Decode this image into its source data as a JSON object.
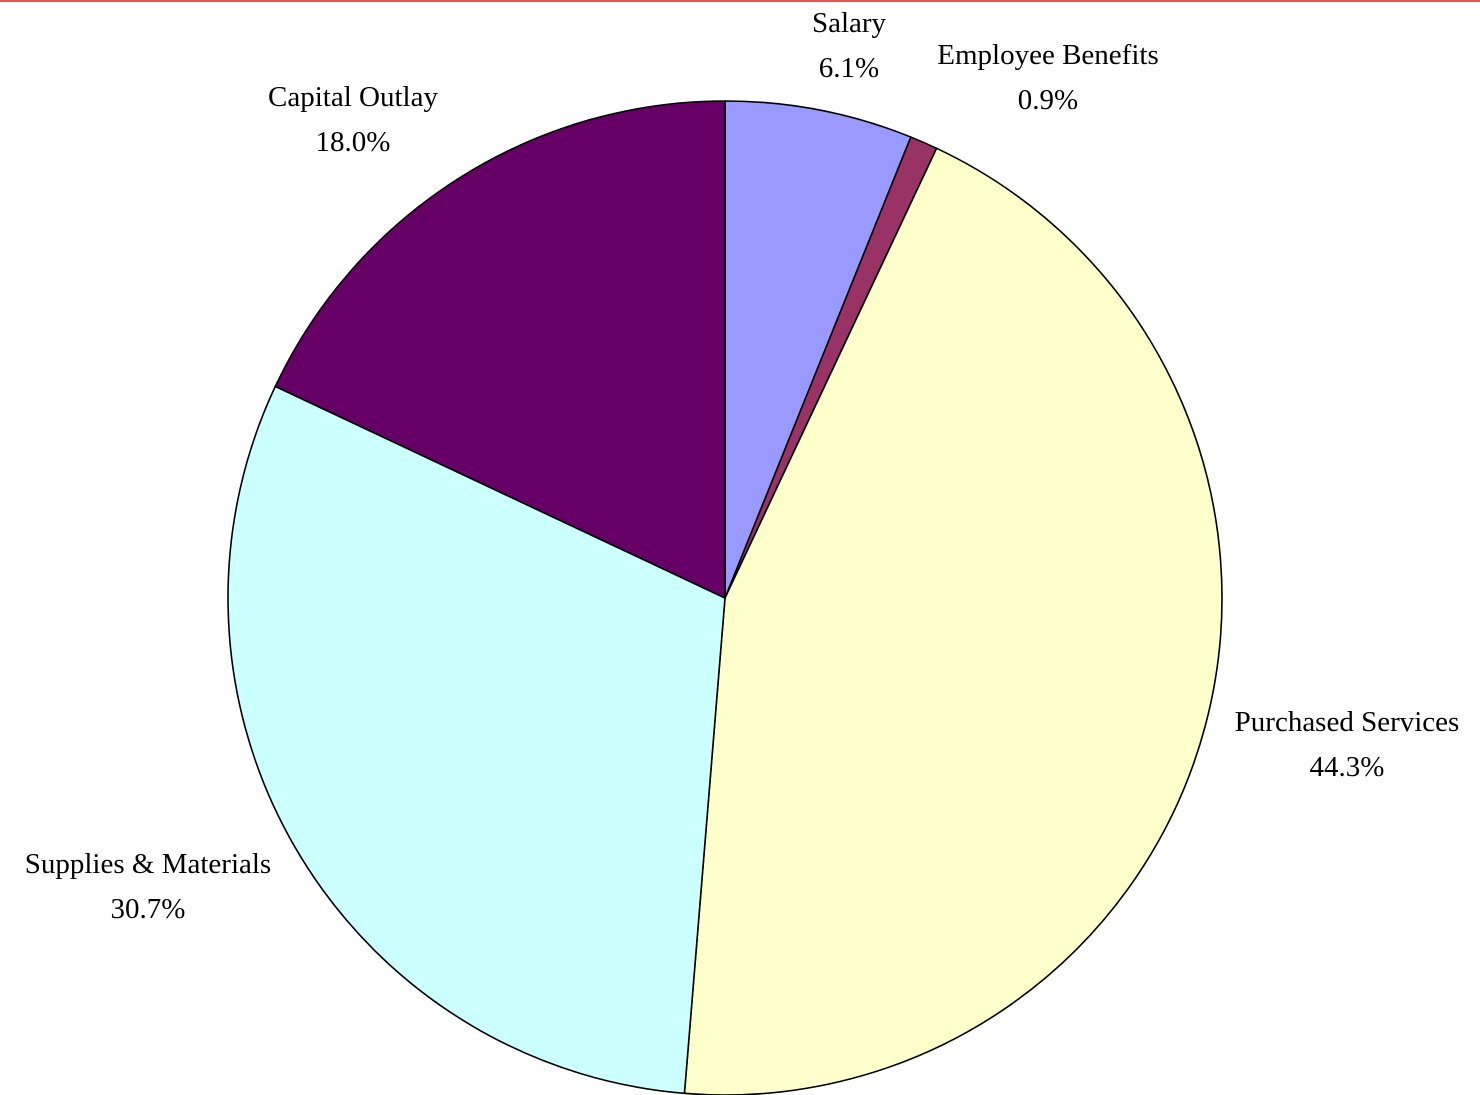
{
  "chart_data": {
    "type": "pie",
    "title": "",
    "start_angle_deg": 0,
    "direction": "clockwise",
    "slices": [
      {
        "label": "Salary",
        "value_label": "6.1%",
        "value": 6.1,
        "color": "#9999ff"
      },
      {
        "label": "Employee Benefits",
        "value_label": "0.9%",
        "value": 0.9,
        "color": "#993366"
      },
      {
        "label": "Purchased Services",
        "value_label": "44.3%",
        "value": 44.3,
        "color": "#ffffcc"
      },
      {
        "label": "Supplies & Materials",
        "value_label": "30.7%",
        "value": 30.7,
        "color": "#ccffff"
      },
      {
        "label": "Capital Outlay",
        "value_label": "18.0%",
        "value": 18.0,
        "color": "#660066"
      }
    ]
  }
}
